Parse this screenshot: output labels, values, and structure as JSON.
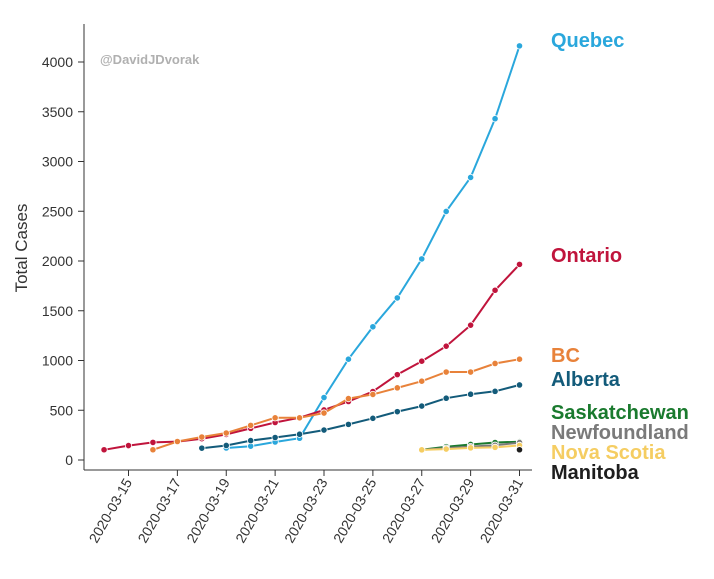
{
  "chart_data": {
    "type": "line",
    "title": "",
    "xlabel": "",
    "ylabel": "Total Cases",
    "watermark": "@DavidJDvorak",
    "ylim": [
      0,
      4300
    ],
    "yticks": [
      0,
      500,
      1000,
      1500,
      2000,
      2500,
      3000,
      3500,
      4000
    ],
    "xlim": [
      "2020-03-13",
      "2020-03-31"
    ],
    "xticks": [
      "2020-03-15",
      "2020-03-17",
      "2020-03-19",
      "2020-03-21",
      "2020-03-23",
      "2020-03-25",
      "2020-03-27",
      "2020-03-29",
      "2020-03-31"
    ],
    "grid": false,
    "legend": "direct-labels-right",
    "series": [
      {
        "name": "Quebec",
        "color": "#2aa7dc",
        "x": [
          "2020-03-19",
          "2020-03-20",
          "2020-03-21",
          "2020-03-22",
          "2020-03-23",
          "2020-03-24",
          "2020-03-25",
          "2020-03-26",
          "2020-03-27",
          "2020-03-28",
          "2020-03-29",
          "2020-03-30",
          "2020-03-31"
        ],
        "values": [
          121,
          139,
          181,
          219,
          628,
          1013,
          1339,
          1629,
          2021,
          2498,
          2840,
          3430,
          4162
        ]
      },
      {
        "name": "Ontario",
        "color": "#c0143c",
        "x": [
          "2020-03-14",
          "2020-03-15",
          "2020-03-16",
          "2020-03-17",
          "2020-03-18",
          "2020-03-19",
          "2020-03-20",
          "2020-03-21",
          "2020-03-22",
          "2020-03-23",
          "2020-03-24",
          "2020-03-25",
          "2020-03-26",
          "2020-03-27",
          "2020-03-28",
          "2020-03-29",
          "2020-03-30",
          "2020-03-31"
        ],
        "values": [
          103,
          145,
          177,
          185,
          214,
          257,
          318,
          377,
          425,
          503,
          588,
          688,
          858,
          993,
          1144,
          1355,
          1706,
          1966
        ]
      },
      {
        "name": "BC",
        "color": "#e8823a",
        "x": [
          "2020-03-16",
          "2020-03-17",
          "2020-03-18",
          "2020-03-19",
          "2020-03-20",
          "2020-03-21",
          "2020-03-22",
          "2020-03-23",
          "2020-03-24",
          "2020-03-25",
          "2020-03-26",
          "2020-03-27",
          "2020-03-28",
          "2020-03-29",
          "2020-03-30",
          "2020-03-31"
        ],
        "values": [
          103,
          186,
          231,
          271,
          348,
          424,
          424,
          472,
          617,
          659,
          725,
          792,
          884,
          884,
          970,
          1013
        ]
      },
      {
        "name": "Alberta",
        "color": "#135b7a",
        "x": [
          "2020-03-18",
          "2020-03-19",
          "2020-03-20",
          "2020-03-21",
          "2020-03-22",
          "2020-03-23",
          "2020-03-24",
          "2020-03-25",
          "2020-03-26",
          "2020-03-27",
          "2020-03-28",
          "2020-03-29",
          "2020-03-30",
          "2020-03-31"
        ],
        "values": [
          119,
          146,
          195,
          226,
          259,
          301,
          358,
          419,
          486,
          542,
          621,
          661,
          690,
          754
        ]
      },
      {
        "name": "Saskatchewan",
        "color": "#1a7a2e",
        "x": [
          "2020-03-27",
          "2020-03-28",
          "2020-03-29",
          "2020-03-30",
          "2020-03-31"
        ],
        "values": [
          104,
          134,
          156,
          176,
          184
        ]
      },
      {
        "name": "Newfoundland",
        "color": "#7a7a7a",
        "x": [
          "2020-03-27",
          "2020-03-28",
          "2020-03-29",
          "2020-03-30",
          "2020-03-31"
        ],
        "values": [
          102,
          120,
          135,
          148,
          175
        ]
      },
      {
        "name": "Nova Scotia",
        "color": "#f5cd62",
        "x": [
          "2020-03-27",
          "2020-03-28",
          "2020-03-29",
          "2020-03-30",
          "2020-03-31"
        ],
        "values": [
          102,
          110,
          122,
          127,
          147
        ]
      },
      {
        "name": "Manitoba",
        "color": "#1e1e1e",
        "x": [
          "2020-03-31"
        ],
        "values": [
          103
        ]
      }
    ]
  }
}
